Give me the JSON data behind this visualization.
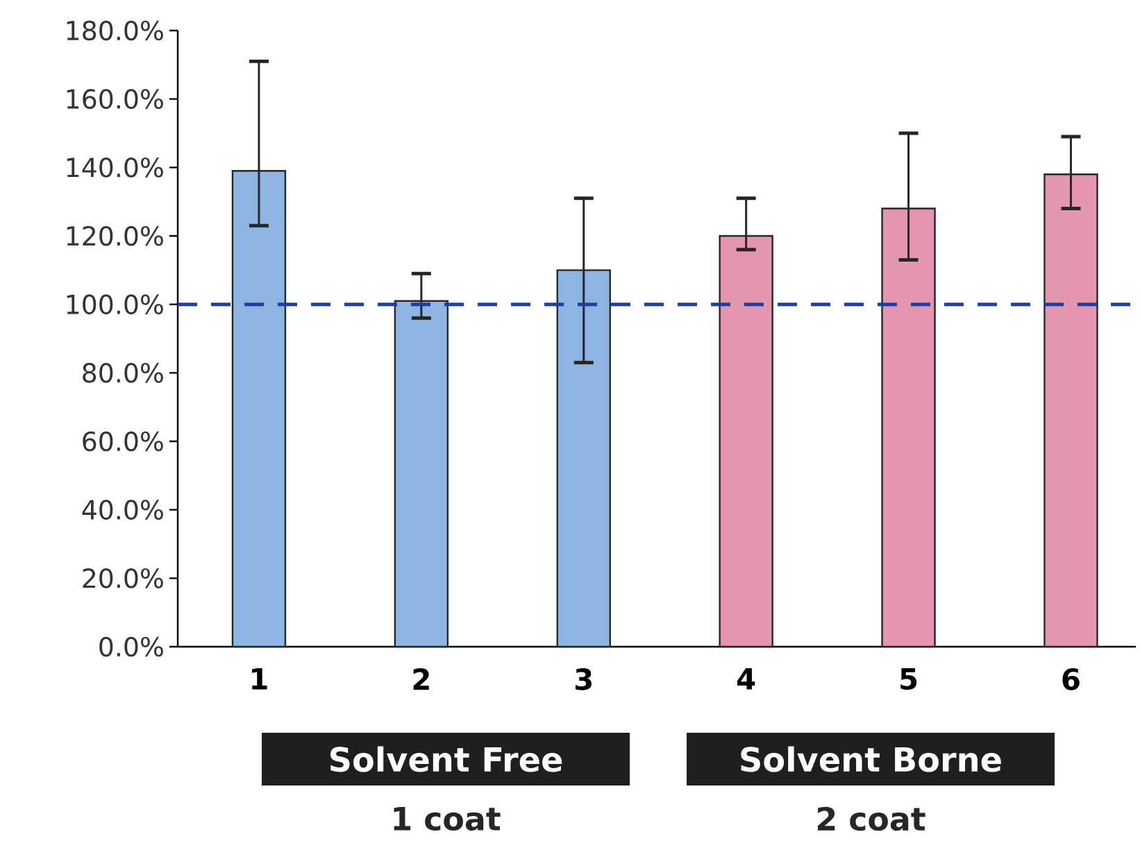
{
  "chart_data": {
    "type": "bar",
    "categories": [
      "1",
      "2",
      "3",
      "4",
      "5",
      "6"
    ],
    "values": [
      139,
      101,
      110,
      120,
      128,
      138
    ],
    "colors": [
      "#8db4e2",
      "#8db4e2",
      "#8db4e2",
      "#e495b0",
      "#e495b0",
      "#e495b0"
    ],
    "errors": [
      [
        123,
        171
      ],
      [
        96,
        109
      ],
      [
        83,
        131
      ],
      [
        116,
        131
      ],
      [
        113,
        150
      ],
      [
        128,
        149
      ]
    ],
    "ylim": [
      0,
      180
    ],
    "yticks": [
      {
        "value": 0,
        "label": "0.0%"
      },
      {
        "value": 20,
        "label": "20.0%"
      },
      {
        "value": 40,
        "label": "40.0%"
      },
      {
        "value": 60,
        "label": "60.0%"
      },
      {
        "value": 80,
        "label": "80.0%"
      },
      {
        "value": 100,
        "label": "100.0%"
      },
      {
        "value": 120,
        "label": "120.0%"
      },
      {
        "value": 140,
        "label": "140.0%"
      },
      {
        "value": 160,
        "label": "160.0%"
      },
      {
        "value": 180,
        "label": "180.0%"
      }
    ],
    "ref_lines": [
      {
        "axis": "y",
        "value": 100,
        "color": "#1f3f9f",
        "line_style": "dashed"
      }
    ],
    "annotations": [
      "Solvent Free",
      "1 coat",
      "Solvent Borne",
      "2 coat"
    ],
    "grid": false
  }
}
